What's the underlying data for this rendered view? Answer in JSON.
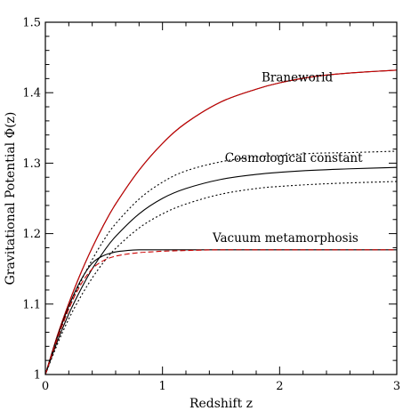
{
  "chart_data": {
    "type": "line",
    "title": "",
    "xlabel": "Redshift z",
    "ylabel": "Gravitational Potential Φ(z)",
    "xlim": [
      0,
      3
    ],
    "ylim": [
      1,
      1.5
    ],
    "x_ticks": [
      0,
      1,
      2,
      3
    ],
    "x_tick_labels": [
      "0",
      "1",
      "2",
      "3"
    ],
    "y_ticks": [
      1,
      1.1,
      1.2,
      1.3,
      1.4,
      1.5
    ],
    "y_tick_labels": [
      "1",
      "1.1",
      "1.2",
      "1.3",
      "1.4",
      "1.5"
    ],
    "grid": false,
    "legend": "none",
    "annotations": [
      {
        "text": "Braneworld",
        "x": 2.15,
        "y": 1.416
      },
      {
        "text": "Cosmological constant",
        "x": 2.12,
        "y": 1.302
      },
      {
        "text": "Vacuum metamorphosis",
        "x": 2.05,
        "y": 1.188
      }
    ],
    "series": [
      {
        "label": "",
        "color": "#000000",
        "dash": "none",
        "x": [
          0,
          0.1,
          0.2,
          0.3,
          0.4,
          0.5,
          0.6,
          0.8,
          1.0,
          1.2,
          1.5,
          1.8,
          2.0,
          2.3,
          2.6,
          3.0
        ],
        "y": [
          1.0,
          1.054,
          1.101,
          1.143,
          1.18,
          1.213,
          1.242,
          1.29,
          1.328,
          1.357,
          1.387,
          1.405,
          1.414,
          1.423,
          1.428,
          1.432
        ]
      },
      {
        "label": "",
        "color": "#cc0000",
        "dash": "none",
        "x": [
          0,
          0.1,
          0.2,
          0.3,
          0.4,
          0.5,
          0.6,
          0.8,
          1.0,
          1.2,
          1.5,
          1.8,
          2.0,
          2.3,
          2.6,
          3.0
        ],
        "y": [
          1.0,
          1.054,
          1.101,
          1.143,
          1.18,
          1.213,
          1.242,
          1.29,
          1.328,
          1.357,
          1.387,
          1.405,
          1.414,
          1.423,
          1.428,
          1.432
        ]
      },
      {
        "label": "",
        "color": "#000000",
        "dash": "2,2.5",
        "x": [
          0,
          0.1,
          0.2,
          0.3,
          0.4,
          0.5,
          0.6,
          0.8,
          1.0,
          1.2,
          1.5,
          1.8,
          2.0,
          2.3,
          2.6,
          3.0
        ],
        "y": [
          1.0,
          1.05,
          1.093,
          1.131,
          1.163,
          1.191,
          1.214,
          1.249,
          1.273,
          1.289,
          1.302,
          1.309,
          1.311,
          1.314,
          1.315,
          1.317
        ]
      },
      {
        "label": "",
        "color": "#000000",
        "dash": "none",
        "x": [
          0,
          0.1,
          0.2,
          0.3,
          0.4,
          0.5,
          0.6,
          0.8,
          1.0,
          1.2,
          1.5,
          1.8,
          2.0,
          2.3,
          2.6,
          3.0
        ],
        "y": [
          1.0,
          1.046,
          1.086,
          1.12,
          1.15,
          1.175,
          1.196,
          1.228,
          1.25,
          1.264,
          1.277,
          1.284,
          1.287,
          1.29,
          1.292,
          1.294
        ]
      },
      {
        "label": "",
        "color": "#000000",
        "dash": "2,2.5",
        "x": [
          0,
          0.1,
          0.2,
          0.3,
          0.4,
          0.5,
          0.6,
          0.8,
          1.0,
          1.2,
          1.5,
          1.8,
          2.0,
          2.3,
          2.6,
          3.0
        ],
        "y": [
          1.0,
          1.042,
          1.079,
          1.11,
          1.137,
          1.16,
          1.179,
          1.208,
          1.228,
          1.242,
          1.256,
          1.264,
          1.267,
          1.27,
          1.272,
          1.274
        ]
      },
      {
        "label": "",
        "color": "#000000",
        "dash": "none",
        "x": [
          0,
          0.1,
          0.2,
          0.3,
          0.4,
          0.5,
          0.6,
          0.7,
          0.8,
          0.9,
          1.0,
          1.2,
          1.5,
          2.0,
          2.5,
          3.0
        ],
        "y": [
          1.0,
          1.052,
          1.097,
          1.133,
          1.158,
          1.169,
          1.174,
          1.176,
          1.177,
          1.177,
          1.177,
          1.177,
          1.177,
          1.177,
          1.177,
          1.177
        ]
      },
      {
        "label": "",
        "color": "#cc0000",
        "dash": "6,3",
        "x": [
          0,
          0.1,
          0.2,
          0.3,
          0.4,
          0.5,
          0.6,
          0.7,
          0.8,
          0.9,
          1.0,
          1.2,
          1.5,
          2.0,
          2.5,
          3.0
        ],
        "y": [
          1.0,
          1.05,
          1.093,
          1.127,
          1.15,
          1.162,
          1.168,
          1.171,
          1.173,
          1.174,
          1.175,
          1.176,
          1.177,
          1.177,
          1.177,
          1.177
        ]
      }
    ]
  }
}
